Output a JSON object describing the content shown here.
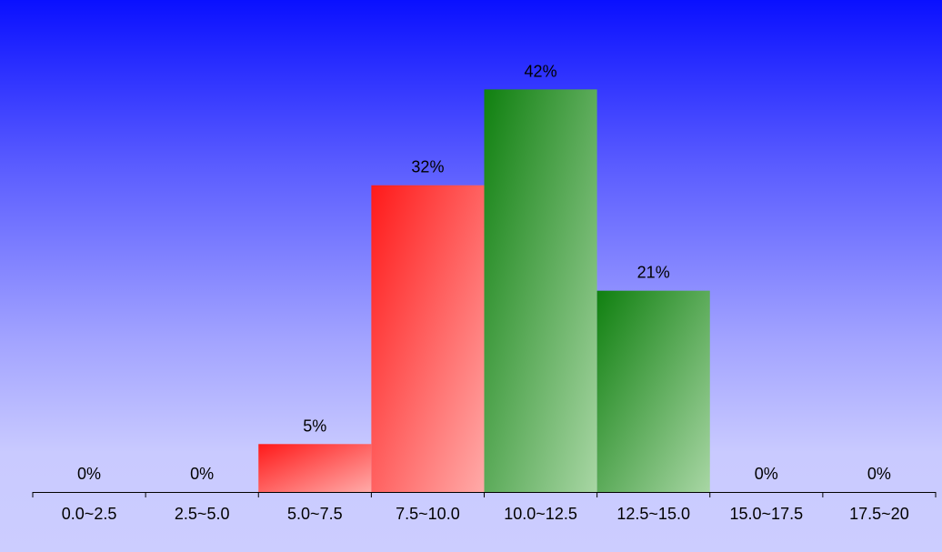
{
  "chart_data": {
    "type": "bar",
    "categories": [
      "0.0~2.5",
      "2.5~5.0",
      "5.0~7.5",
      "7.5~10.0",
      "10.0~12.5",
      "12.5~15.0",
      "15.0~17.5",
      "17.5~20"
    ],
    "values": [
      0,
      0,
      5,
      32,
      42,
      21,
      0,
      0
    ],
    "value_labels": [
      "0%",
      "0%",
      "5%",
      "32%",
      "42%",
      "21%",
      "0%",
      "0%"
    ],
    "bar_colors": [
      "#ff1a1a",
      "#ff1a1a",
      "#ff1a1a",
      "#ff1a1a",
      "#108010",
      "#108010",
      "#108010",
      "#108010"
    ],
    "title": "",
    "xlabel": "",
    "ylabel": "",
    "ylim": [
      0,
      50
    ],
    "grid": false,
    "legend": "none"
  }
}
